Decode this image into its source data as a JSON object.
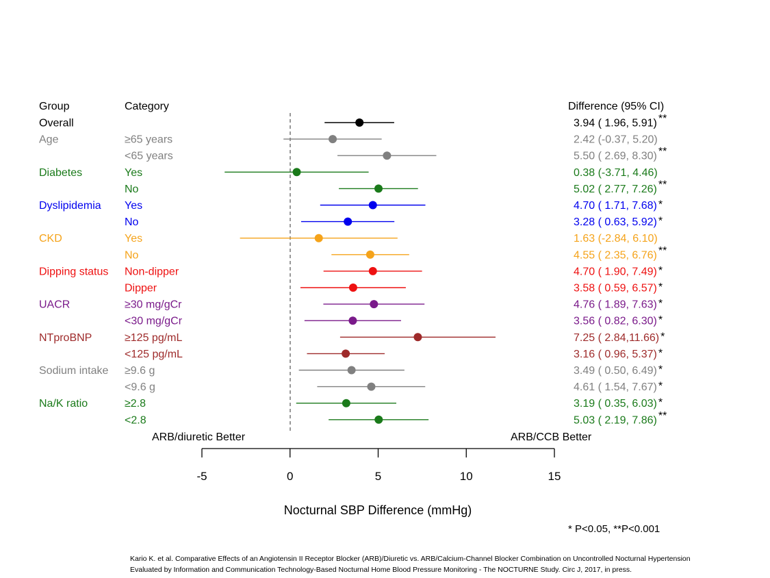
{
  "headers": {
    "group": "Group",
    "category": "Category",
    "difference": "Difference (95% CI)"
  },
  "direction_labels": {
    "left": "ARB/diuretic Better",
    "right": "ARB/CCB Better"
  },
  "chart_data": {
    "type": "forest",
    "xlabel": "Nocturnal SBP Difference (mmHg)",
    "xlim": [
      -5,
      15
    ],
    "xticks": [
      "-5",
      "0",
      "5",
      "10",
      "15"
    ],
    "reference_line": 0,
    "rows": [
      {
        "group": "Overall",
        "category": "",
        "estimate": 3.94,
        "lower": 1.96,
        "upper": 5.91,
        "ci_text": "3.94 ( 1.96, 5.91)",
        "sig": "**",
        "color": "#000000"
      },
      {
        "group": "Age",
        "category": "≥65 years",
        "estimate": 2.42,
        "lower": -0.37,
        "upper": 5.2,
        "ci_text": "2.42 (-0.37, 5.20)",
        "sig": "",
        "color": "#808080"
      },
      {
        "group": "",
        "category": "<65 years",
        "estimate": 5.5,
        "lower": 2.69,
        "upper": 8.3,
        "ci_text": "5.50 ( 2.69, 8.30)",
        "sig": "**",
        "color": "#808080"
      },
      {
        "group": "Diabetes",
        "category": "Yes",
        "estimate": 0.38,
        "lower": -3.71,
        "upper": 4.46,
        "ci_text": "0.38 (-3.71, 4.46)",
        "sig": "",
        "color": "#1a7a1a"
      },
      {
        "group": "",
        "category": "No",
        "estimate": 5.02,
        "lower": 2.77,
        "upper": 7.26,
        "ci_text": "5.02 ( 2.77, 7.26)",
        "sig": "**",
        "color": "#1a7a1a"
      },
      {
        "group": "Dyslipidemia",
        "category": "Yes",
        "estimate": 4.7,
        "lower": 1.71,
        "upper": 7.68,
        "ci_text": "4.70 ( 1.71, 7.68)",
        "sig": "*",
        "color": "#0000ee"
      },
      {
        "group": "",
        "category": "No",
        "estimate": 3.28,
        "lower": 0.63,
        "upper": 5.92,
        "ci_text": "3.28 ( 0.63, 5.92)",
        "sig": "*",
        "color": "#0000ee"
      },
      {
        "group": "CKD",
        "category": "Yes",
        "estimate": 1.63,
        "lower": -2.84,
        "upper": 6.1,
        "ci_text": "1.63 (-2.84, 6.10)",
        "sig": "",
        "color": "#f5a31a"
      },
      {
        "group": "",
        "category": "No",
        "estimate": 4.55,
        "lower": 2.35,
        "upper": 6.76,
        "ci_text": "4.55 ( 2.35, 6.76)",
        "sig": "**",
        "color": "#f5a31a"
      },
      {
        "group": "Dipping status",
        "category": "Non-dipper",
        "estimate": 4.7,
        "lower": 1.9,
        "upper": 7.49,
        "ci_text": "4.70 ( 1.90, 7.49)",
        "sig": "*",
        "color": "#ee1111"
      },
      {
        "group": "",
        "category": "Dipper",
        "estimate": 3.58,
        "lower": 0.59,
        "upper": 6.57,
        "ci_text": "3.58 ( 0.59, 6.57)",
        "sig": "*",
        "color": "#ee1111"
      },
      {
        "group": "UACR",
        "category": "≥30 mg/gCr",
        "estimate": 4.76,
        "lower": 1.89,
        "upper": 7.63,
        "ci_text": "4.76 ( 1.89, 7.63)",
        "sig": "*",
        "color": "#7a1a8a"
      },
      {
        "group": "",
        "category": "<30 mg/gCr",
        "estimate": 3.56,
        "lower": 0.82,
        "upper": 6.3,
        "ci_text": "3.56 ( 0.82, 6.30)",
        "sig": "*",
        "color": "#7a1a8a"
      },
      {
        "group": "NTproBNP",
        "category": "≥125 pg/mL",
        "estimate": 7.25,
        "lower": 2.84,
        "upper": 11.66,
        "ci_text": "7.25 ( 2.84,11.66)",
        "sig": "*",
        "color": "#9e2a2a"
      },
      {
        "group": "",
        "category": "<125 pg/mL",
        "estimate": 3.16,
        "lower": 0.96,
        "upper": 5.37,
        "ci_text": "3.16 ( 0.96, 5.37)",
        "sig": "*",
        "color": "#9e2a2a"
      },
      {
        "group": "Sodium intake",
        "category": "≥9.6 g",
        "estimate": 3.49,
        "lower": 0.5,
        "upper": 6.49,
        "ci_text": "3.49 ( 0.50, 6.49)",
        "sig": "*",
        "color": "#808080"
      },
      {
        "group": "",
        "category": "<9.6 g",
        "estimate": 4.61,
        "lower": 1.54,
        "upper": 7.67,
        "ci_text": "4.61 ( 1.54, 7.67)",
        "sig": "*",
        "color": "#808080"
      },
      {
        "group": "Na/K ratio",
        "category": "≥2.8",
        "estimate": 3.19,
        "lower": 0.35,
        "upper": 6.03,
        "ci_text": "3.19 ( 0.35, 6.03)",
        "sig": "*",
        "color": "#1a7a1a"
      },
      {
        "group": "",
        "category": "<2.8",
        "estimate": 5.03,
        "lower": 2.19,
        "upper": 7.86,
        "ci_text": "5.03 ( 2.19, 7.86)",
        "sig": "**",
        "color": "#1a7a1a"
      }
    ]
  },
  "footnote": "* P<0.05, **P<0.001",
  "citation": {
    "line1": "Kario K. et al. Comparative Effects of an Angiotensin II Receptor Blocker (ARB)/Diuretic vs. ARB/Calcium-Channel Blocker Combination on Uncontrolled Nocturnal Hypertension",
    "line2": "Evaluated by Information and Communication Technology-Based Nocturnal Home Blood Pressure Monitoring   - The NOCTURNE Study. Circ J, 2017, in press."
  }
}
